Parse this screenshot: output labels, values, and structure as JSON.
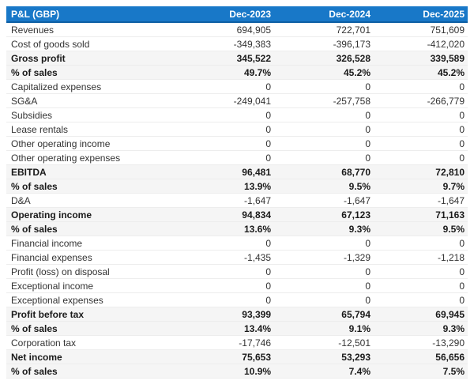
{
  "colors": {
    "header_bg": "#1878c8",
    "header_border": "#0d5fa4",
    "header_text": "#ffffff",
    "shaded_row_bg": "#f5f5f5",
    "row_border": "#ededed",
    "text": "#333333",
    "text_bold": "#1a1a1a"
  },
  "table": {
    "title": "P&L (GBP)",
    "columns": [
      "Dec-2023",
      "Dec-2024",
      "Dec-2025"
    ],
    "rows": [
      {
        "label": "Revenues",
        "values": [
          "694,905",
          "722,701",
          "751,609"
        ],
        "bold": false,
        "shaded": false
      },
      {
        "label": "Cost of goods sold",
        "values": [
          "-349,383",
          "-396,173",
          "-412,020"
        ],
        "bold": false,
        "shaded": false
      },
      {
        "label": "Gross profit",
        "values": [
          "345,522",
          "326,528",
          "339,589"
        ],
        "bold": true,
        "shaded": true
      },
      {
        "label": "% of sales",
        "values": [
          "49.7%",
          "45.2%",
          "45.2%"
        ],
        "bold": true,
        "shaded": true
      },
      {
        "label": "Capitalized expenses",
        "values": [
          "0",
          "0",
          "0"
        ],
        "bold": false,
        "shaded": false
      },
      {
        "label": "SG&A",
        "values": [
          "-249,041",
          "-257,758",
          "-266,779"
        ],
        "bold": false,
        "shaded": false
      },
      {
        "label": "Subsidies",
        "values": [
          "0",
          "0",
          "0"
        ],
        "bold": false,
        "shaded": false
      },
      {
        "label": "Lease rentals",
        "values": [
          "0",
          "0",
          "0"
        ],
        "bold": false,
        "shaded": false
      },
      {
        "label": "Other operating income",
        "values": [
          "0",
          "0",
          "0"
        ],
        "bold": false,
        "shaded": false
      },
      {
        "label": "Other operating expenses",
        "values": [
          "0",
          "0",
          "0"
        ],
        "bold": false,
        "shaded": false
      },
      {
        "label": "EBITDA",
        "values": [
          "96,481",
          "68,770",
          "72,810"
        ],
        "bold": true,
        "shaded": true
      },
      {
        "label": "% of sales",
        "values": [
          "13.9%",
          "9.5%",
          "9.7%"
        ],
        "bold": true,
        "shaded": true
      },
      {
        "label": "D&A",
        "values": [
          "-1,647",
          "-1,647",
          "-1,647"
        ],
        "bold": false,
        "shaded": false
      },
      {
        "label": "Operating income",
        "values": [
          "94,834",
          "67,123",
          "71,163"
        ],
        "bold": true,
        "shaded": true
      },
      {
        "label": "% of sales",
        "values": [
          "13.6%",
          "9.3%",
          "9.5%"
        ],
        "bold": true,
        "shaded": true
      },
      {
        "label": "Financial income",
        "values": [
          "0",
          "0",
          "0"
        ],
        "bold": false,
        "shaded": false
      },
      {
        "label": "Financial expenses",
        "values": [
          "-1,435",
          "-1,329",
          "-1,218"
        ],
        "bold": false,
        "shaded": false
      },
      {
        "label": "Profit (loss) on disposal",
        "values": [
          "0",
          "0",
          "0"
        ],
        "bold": false,
        "shaded": false
      },
      {
        "label": "Exceptional income",
        "values": [
          "0",
          "0",
          "0"
        ],
        "bold": false,
        "shaded": false
      },
      {
        "label": "Exceptional expenses",
        "values": [
          "0",
          "0",
          "0"
        ],
        "bold": false,
        "shaded": false
      },
      {
        "label": "Profit before tax",
        "values": [
          "93,399",
          "65,794",
          "69,945"
        ],
        "bold": true,
        "shaded": true
      },
      {
        "label": "% of sales",
        "values": [
          "13.4%",
          "9.1%",
          "9.3%"
        ],
        "bold": true,
        "shaded": true
      },
      {
        "label": "Corporation tax",
        "values": [
          "-17,746",
          "-12,501",
          "-13,290"
        ],
        "bold": false,
        "shaded": false
      },
      {
        "label": "Net income",
        "values": [
          "75,653",
          "53,293",
          "56,656"
        ],
        "bold": true,
        "shaded": true
      },
      {
        "label": "% of sales",
        "values": [
          "10.9%",
          "7.4%",
          "7.5%"
        ],
        "bold": true,
        "shaded": true
      }
    ]
  }
}
